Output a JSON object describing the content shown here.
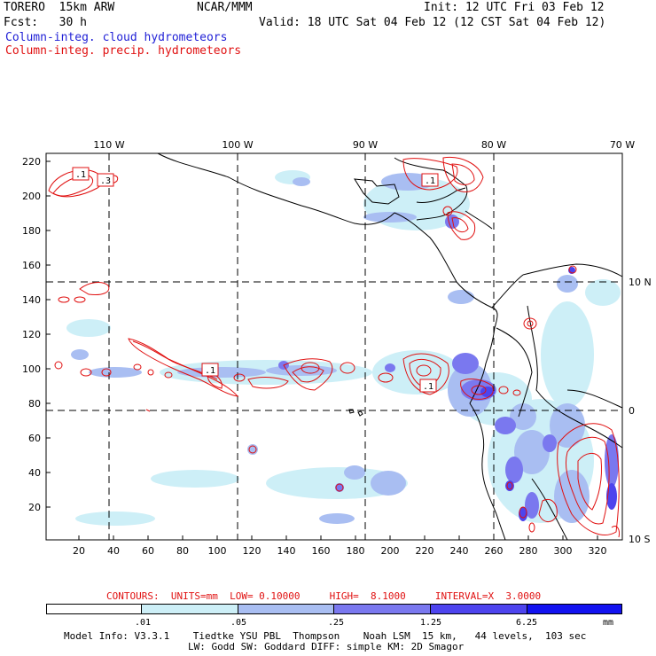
{
  "header": {
    "model": "TORERO  15km ARW",
    "center": "NCAR/MMM",
    "init": "Init: 12 UTC Fri 03 Feb 12",
    "fcst": "Fcst:   30 h",
    "valid": "Valid: 18 UTC Sat 04 Feb 12 (12 CST Sat 04 Feb 12)",
    "legend_cloud": "Column-integ. cloud hydrometeors",
    "legend_precip": "Column-integ. precip. hydrometeors"
  },
  "axes": {
    "top_lon_labels": [
      "110 W",
      "100 W",
      "90 W",
      "80 W",
      "70 W"
    ],
    "right_lat_labels": [
      "10 N",
      "0",
      "10 S"
    ],
    "y_ticks": [
      "220",
      "200",
      "180",
      "160",
      "140",
      "120",
      "100",
      "80",
      "60",
      "40",
      "20"
    ],
    "x_ticks": [
      "20",
      "40",
      "60",
      "80",
      "100",
      "120",
      "140",
      "160",
      "180",
      "200",
      "220",
      "240",
      "260",
      "280",
      "300",
      "320"
    ]
  },
  "contour_labels": [
    ".1",
    ".3",
    ".1",
    ".1",
    ".1"
  ],
  "contour_info": "CONTOURS:  UNITS=mm  LOW= 0.10000     HIGH=  8.1000     INTERVAL=X  3.0000",
  "colorbar": {
    "labels": [
      ".01",
      ".05",
      ".25",
      "1.25",
      "6.25"
    ],
    "unit": "mm",
    "colors": [
      "#ffffff",
      "#cdeff7",
      "#a9bef2",
      "#7a78ef",
      "#4d44ee",
      "#1212f0"
    ]
  },
  "footer": {
    "line1": "Model Info: V3.3.1    Tiedtke YSU PBL  Thompson    Noah LSM  15 km,   44 levels,  103 sec",
    "line2": "LW: Godd SW: Goddard DIFF: simple KM: 2D Smagor"
  }
}
